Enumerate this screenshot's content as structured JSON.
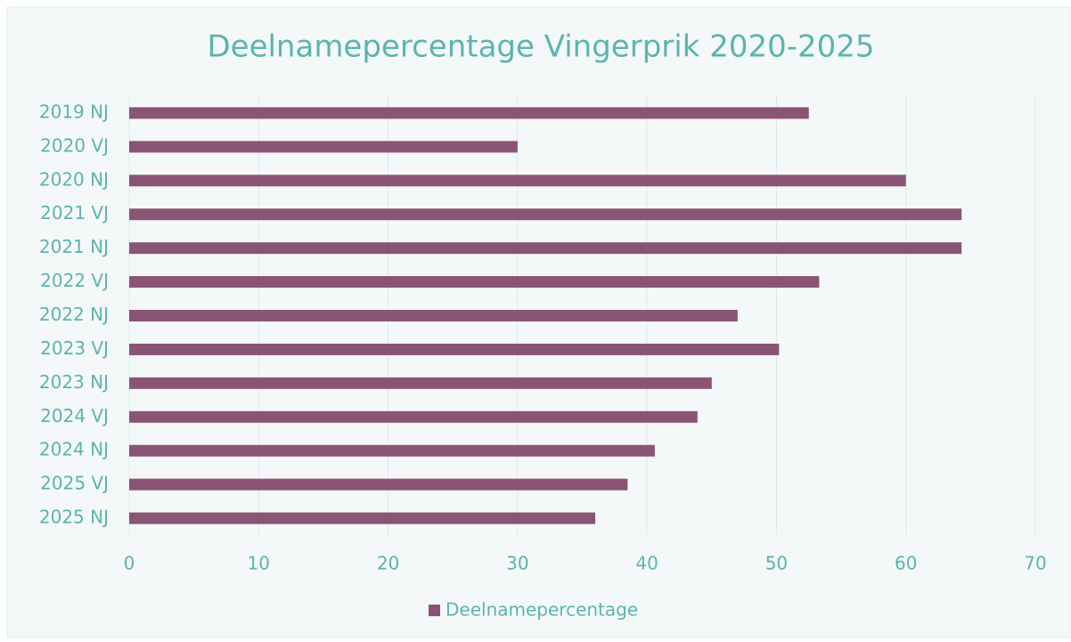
{
  "chart_data": {
    "type": "bar",
    "orientation": "horizontal",
    "title": "Deelnamepercentage Vingerprik 2020-2025",
    "categories": [
      "2019 NJ",
      "2020 VJ",
      "2020 NJ",
      "2021 VJ",
      "2021 NJ",
      "2022 VJ",
      "2022 NJ",
      "2023 VJ",
      "2023 NJ",
      "2024 VJ",
      "2024 NJ",
      "2025 VJ",
      "2025 NJ"
    ],
    "series": [
      {
        "name": "Deelnamepercentage",
        "color": "#8a5474",
        "values": [
          52.5,
          30,
          60,
          64.3,
          64.3,
          53.3,
          47,
          50.2,
          45,
          43.9,
          40.6,
          38.5,
          36
        ]
      }
    ],
    "xlim": [
      0,
      70
    ],
    "xticks": [
      0,
      10,
      20,
      30,
      40,
      50,
      60,
      70
    ],
    "grid": true,
    "legend": "bottom"
  }
}
